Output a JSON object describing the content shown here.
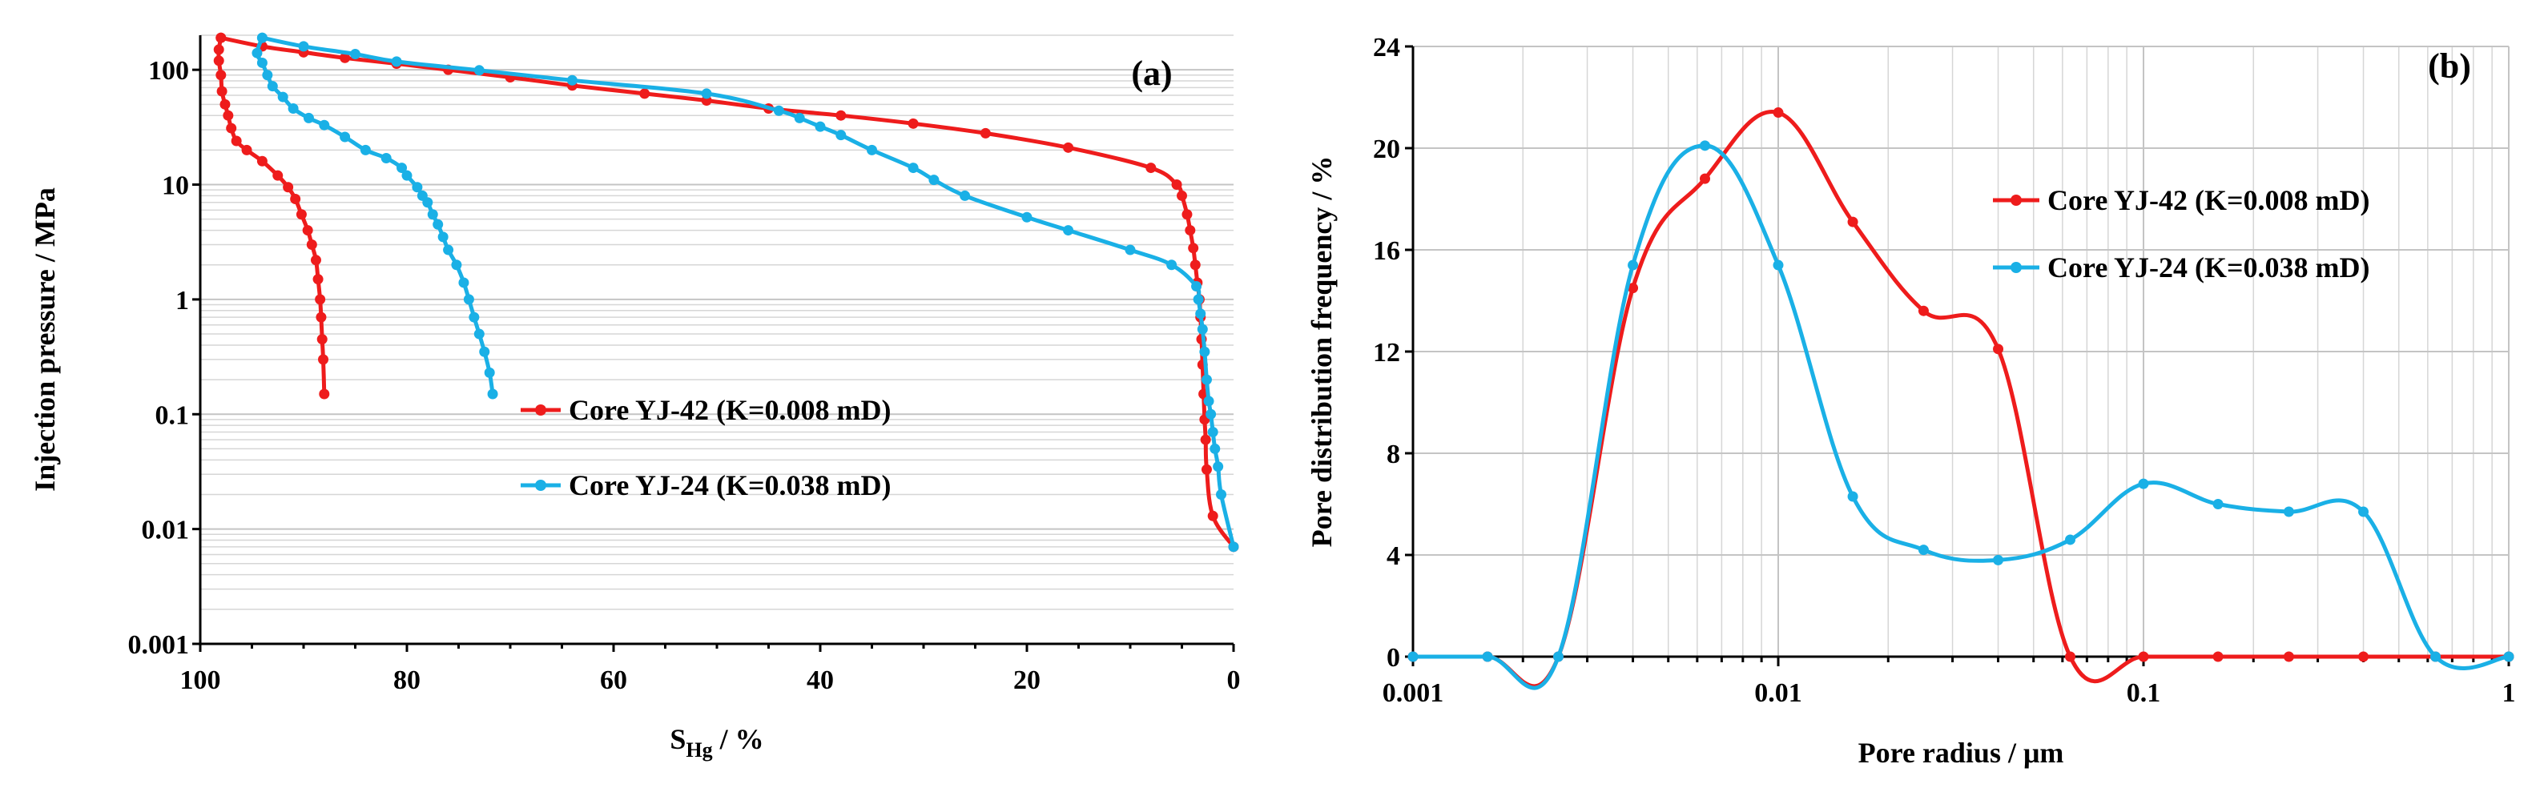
{
  "chart_data": [
    {
      "type": "line",
      "panel_label": "(a)",
      "xlabel_main": "S",
      "xlabel_sub": "Hg",
      "xlabel_rest": " / %",
      "ylabel": "Injection pressure / MPa",
      "xlim": [
        100,
        0
      ],
      "ylim": [
        0.001,
        200
      ],
      "yscale": "log",
      "xticks": [
        100,
        80,
        60,
        40,
        20,
        0
      ],
      "xtick_labels": [
        "100",
        "80",
        "60",
        "40",
        "20",
        "0"
      ],
      "yticks": [
        0.001,
        0.01,
        0.1,
        1,
        10,
        100
      ],
      "ytick_labels": [
        "0.001",
        "0.01",
        "0.1",
        "1",
        "10",
        "100"
      ],
      "legend_position": "center",
      "series": [
        {
          "name": "Core YJ-42 (K=0.008 mD)",
          "color": "#ee1c1c",
          "intrusion": [
            [
              0,
              0.007
            ],
            [
              2,
              0.013
            ],
            [
              2.6,
              0.033
            ],
            [
              2.7,
              0.06
            ],
            [
              2.8,
              0.09
            ],
            [
              2.9,
              0.15
            ],
            [
              3.0,
              0.27
            ],
            [
              3.1,
              0.45
            ],
            [
              3.2,
              0.7
            ],
            [
              3.3,
              1.0
            ],
            [
              3.5,
              1.4
            ],
            [
              3.7,
              2.0
            ],
            [
              3.9,
              2.8
            ],
            [
              4.2,
              4.0
            ],
            [
              4.5,
              5.5
            ],
            [
              5,
              8
            ],
            [
              5.5,
              10
            ],
            [
              8,
              14
            ],
            [
              16,
              21
            ],
            [
              24,
              28
            ],
            [
              31,
              34
            ],
            [
              38,
              40
            ],
            [
              45,
              46
            ],
            [
              51,
              54
            ],
            [
              57,
              62
            ],
            [
              64,
              73
            ],
            [
              70,
              86
            ],
            [
              76,
              100
            ],
            [
              81,
              113
            ],
            [
              86,
              127
            ],
            [
              90,
              142
            ],
            [
              94,
              160
            ],
            [
              98,
              190
            ]
          ],
          "extrusion": [
            [
              98,
              190
            ],
            [
              98.2,
              150
            ],
            [
              98.2,
              120
            ],
            [
              98.0,
              90
            ],
            [
              97.9,
              65
            ],
            [
              97.6,
              50
            ],
            [
              97.3,
              40
            ],
            [
              97.0,
              31
            ],
            [
              96.5,
              24
            ],
            [
              95.5,
              20
            ],
            [
              94,
              16
            ],
            [
              92.5,
              12
            ],
            [
              91.5,
              9.5
            ],
            [
              90.8,
              7.5
            ],
            [
              90.2,
              5.5
            ],
            [
              89.6,
              4.0
            ],
            [
              89.2,
              3.0
            ],
            [
              88.8,
              2.2
            ],
            [
              88.6,
              1.5
            ],
            [
              88.4,
              1.0
            ],
            [
              88.3,
              0.7
            ],
            [
              88.2,
              0.45
            ],
            [
              88.1,
              0.3
            ],
            [
              88.0,
              0.15
            ]
          ]
        },
        {
          "name": "Core YJ-24 (K=0.038 mD)",
          "color": "#1ab0e6",
          "intrusion": [
            [
              0,
              0.007
            ],
            [
              1.2,
              0.02
            ],
            [
              1.5,
              0.035
            ],
            [
              1.8,
              0.05
            ],
            [
              2.0,
              0.07
            ],
            [
              2.2,
              0.1
            ],
            [
              2.4,
              0.13
            ],
            [
              2.6,
              0.2
            ],
            [
              2.8,
              0.35
            ],
            [
              3.0,
              0.55
            ],
            [
              3.2,
              0.75
            ],
            [
              3.4,
              1.0
            ],
            [
              3.6,
              1.3
            ],
            [
              6,
              2.0
            ],
            [
              10,
              2.7
            ],
            [
              16,
              4.0
            ],
            [
              20,
              5.2
            ],
            [
              26,
              8
            ],
            [
              29,
              11
            ],
            [
              31,
              14
            ],
            [
              35,
              20
            ],
            [
              38,
              27
            ],
            [
              40,
              32
            ],
            [
              42,
              38
            ],
            [
              44,
              44
            ],
            [
              51,
              62
            ],
            [
              64,
              81
            ],
            [
              73,
              99
            ],
            [
              81,
              118
            ],
            [
              85,
              137
            ],
            [
              90,
              160
            ],
            [
              94,
              190
            ]
          ],
          "extrusion": [
            [
              94,
              190
            ],
            [
              94.5,
              140
            ],
            [
              94,
              115
            ],
            [
              93.5,
              90
            ],
            [
              93,
              72
            ],
            [
              92,
              58
            ],
            [
              91,
              46
            ],
            [
              89.5,
              38
            ],
            [
              88,
              33
            ],
            [
              86,
              26
            ],
            [
              84,
              20
            ],
            [
              82,
              17
            ],
            [
              80.5,
              14
            ],
            [
              80,
              12
            ],
            [
              79,
              9.5
            ],
            [
              78.5,
              8
            ],
            [
              78,
              7
            ],
            [
              77.5,
              5.5
            ],
            [
              77,
              4.5
            ],
            [
              76.5,
              3.5
            ],
            [
              76,
              2.7
            ],
            [
              75.2,
              2.0
            ],
            [
              74.5,
              1.4
            ],
            [
              74,
              1.0
            ],
            [
              73.5,
              0.7
            ],
            [
              73,
              0.5
            ],
            [
              72.5,
              0.35
            ],
            [
              72,
              0.23
            ],
            [
              71.7,
              0.15
            ]
          ]
        }
      ]
    },
    {
      "type": "line",
      "panel_label": "(b)",
      "xlabel": "Pore radius / μm",
      "ylabel": "Pore distribution frequency / %",
      "xscale": "log",
      "xlim": [
        0.001,
        1
      ],
      "ylim": [
        0,
        24
      ],
      "xticks": [
        0.001,
        0.01,
        0.1,
        1
      ],
      "xtick_labels": [
        "0.001",
        "0.01",
        "0.1",
        "1"
      ],
      "yticks": [
        0,
        4,
        8,
        12,
        16,
        20,
        24
      ],
      "ytick_labels": [
        "0",
        "4",
        "8",
        "12",
        "16",
        "20",
        "24"
      ],
      "legend_position": "top-right",
      "series": [
        {
          "name": "Core YJ-42 (K=0.008 mD)",
          "color": "#ee1c1c",
          "x": [
            0.001,
            0.0016,
            0.0025,
            0.004,
            0.0063,
            0.01,
            0.016,
            0.025,
            0.04,
            0.063,
            0.1,
            0.16,
            0.25,
            0.4,
            0.63,
            1
          ],
          "y": [
            0,
            0,
            0,
            14.5,
            18.8,
            21.4,
            17.1,
            13.6,
            12.1,
            0,
            0,
            0,
            0,
            0,
            0,
            0
          ]
        },
        {
          "name": "Core YJ-24 (K=0.038 mD)",
          "color": "#1ab0e6",
          "x": [
            0.001,
            0.0016,
            0.0025,
            0.004,
            0.0063,
            0.01,
            0.016,
            0.025,
            0.04,
            0.063,
            0.1,
            0.16,
            0.25,
            0.4,
            0.63,
            1
          ],
          "y": [
            0,
            0,
            0,
            15.4,
            20.1,
            15.4,
            6.3,
            4.2,
            3.8,
            4.6,
            6.8,
            6.0,
            5.7,
            5.7,
            0,
            0
          ]
        }
      ]
    }
  ]
}
